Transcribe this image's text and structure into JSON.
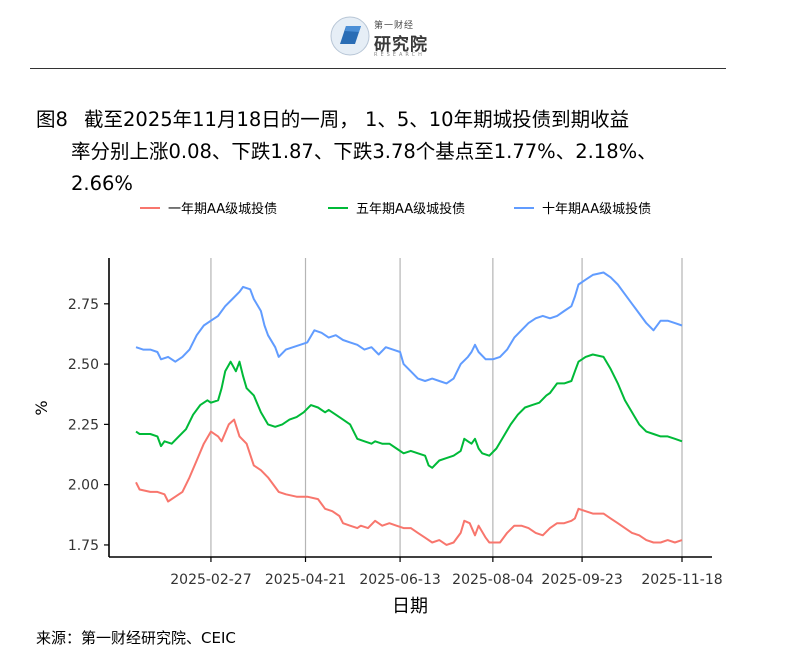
{
  "logo": {
    "small": "第一财经",
    "main": "研究院",
    "sub": "RESEARCH"
  },
  "title": {
    "number": "图8",
    "line1": "截至2025年11月18日的一周， 1、5、10年期城投债到期收益",
    "line2": "率分别上涨0.08、下跌1.87、下跌3.78个基点至1.77%、2.18%、",
    "line3": "2.66%"
  },
  "source": "来源：第一财经研究院、CEIC",
  "chart_data": {
    "type": "line",
    "xlabel": "日期",
    "ylabel": "%",
    "ylim": [
      1.7,
      2.94
    ],
    "yticks": [
      1.75,
      2.0,
      2.25,
      2.5,
      2.75
    ],
    "ytick_labels": [
      "1.75",
      "2.00",
      "2.25",
      "2.50",
      "2.75"
    ],
    "xlim": [
      0,
      300
    ],
    "xticks": [
      {
        "day": 42,
        "label": "2025-02-27"
      },
      {
        "day": 95,
        "label": "2025-04-21"
      },
      {
        "day": 148,
        "label": "2025-06-13"
      },
      {
        "day": 200,
        "label": "2025-08-04"
      },
      {
        "day": 250,
        "label": "2025-09-23"
      },
      {
        "day": 306,
        "label": "2025-11-18"
      }
    ],
    "grid": "vertical",
    "legend_position": "top",
    "series": [
      {
        "name": "一年期AA级城投债",
        "color": "#F8766D",
        "points": [
          [
            0,
            2.01
          ],
          [
            2,
            1.98
          ],
          [
            8,
            1.97
          ],
          [
            12,
            1.97
          ],
          [
            16,
            1.96
          ],
          [
            18,
            1.93
          ],
          [
            22,
            1.95
          ],
          [
            26,
            1.97
          ],
          [
            30,
            2.03
          ],
          [
            34,
            2.1
          ],
          [
            38,
            2.17
          ],
          [
            42,
            2.22
          ],
          [
            46,
            2.2
          ],
          [
            48,
            2.18
          ],
          [
            52,
            2.25
          ],
          [
            55,
            2.27
          ],
          [
            58,
            2.2
          ],
          [
            62,
            2.17
          ],
          [
            66,
            2.08
          ],
          [
            70,
            2.06
          ],
          [
            74,
            2.03
          ],
          [
            78,
            1.99
          ],
          [
            80,
            1.97
          ],
          [
            84,
            1.96
          ],
          [
            90,
            1.95
          ],
          [
            96,
            1.95
          ],
          [
            102,
            1.94
          ],
          [
            106,
            1.9
          ],
          [
            110,
            1.89
          ],
          [
            114,
            1.87
          ],
          [
            116,
            1.84
          ],
          [
            120,
            1.83
          ],
          [
            124,
            1.82
          ],
          [
            126,
            1.83
          ],
          [
            130,
            1.82
          ],
          [
            134,
            1.85
          ],
          [
            138,
            1.83
          ],
          [
            142,
            1.84
          ],
          [
            146,
            1.83
          ],
          [
            150,
            1.82
          ],
          [
            154,
            1.82
          ],
          [
            158,
            1.8
          ],
          [
            162,
            1.78
          ],
          [
            166,
            1.76
          ],
          [
            170,
            1.77
          ],
          [
            174,
            1.75
          ],
          [
            178,
            1.76
          ],
          [
            182,
            1.8
          ],
          [
            184,
            1.85
          ],
          [
            187,
            1.84
          ],
          [
            190,
            1.79
          ],
          [
            192,
            1.83
          ],
          [
            196,
            1.78
          ],
          [
            198,
            1.76
          ],
          [
            204,
            1.76
          ],
          [
            208,
            1.8
          ],
          [
            212,
            1.83
          ],
          [
            216,
            1.83
          ],
          [
            220,
            1.82
          ],
          [
            224,
            1.8
          ],
          [
            228,
            1.79
          ],
          [
            232,
            1.82
          ],
          [
            236,
            1.84
          ],
          [
            240,
            1.84
          ],
          [
            244,
            1.85
          ],
          [
            246,
            1.86
          ],
          [
            248,
            1.9
          ],
          [
            252,
            1.89
          ],
          [
            256,
            1.88
          ],
          [
            262,
            1.88
          ],
          [
            266,
            1.86
          ],
          [
            270,
            1.84
          ],
          [
            274,
            1.82
          ],
          [
            278,
            1.8
          ],
          [
            282,
            1.79
          ],
          [
            286,
            1.77
          ],
          [
            290,
            1.76
          ],
          [
            294,
            1.76
          ],
          [
            298,
            1.77
          ],
          [
            302,
            1.76
          ],
          [
            306,
            1.77
          ]
        ]
      },
      {
        "name": "五年期AA级城投债",
        "color": "#00BA38",
        "points": [
          [
            0,
            2.22
          ],
          [
            2,
            2.21
          ],
          [
            8,
            2.21
          ],
          [
            12,
            2.2
          ],
          [
            14,
            2.16
          ],
          [
            16,
            2.18
          ],
          [
            20,
            2.17
          ],
          [
            24,
            2.2
          ],
          [
            28,
            2.23
          ],
          [
            32,
            2.29
          ],
          [
            36,
            2.33
          ],
          [
            40,
            2.35
          ],
          [
            42,
            2.34
          ],
          [
            46,
            2.35
          ],
          [
            48,
            2.4
          ],
          [
            50,
            2.47
          ],
          [
            53,
            2.51
          ],
          [
            56,
            2.47
          ],
          [
            58,
            2.51
          ],
          [
            60,
            2.45
          ],
          [
            62,
            2.4
          ],
          [
            66,
            2.37
          ],
          [
            70,
            2.3
          ],
          [
            74,
            2.25
          ],
          [
            78,
            2.24
          ],
          [
            82,
            2.25
          ],
          [
            86,
            2.27
          ],
          [
            90,
            2.28
          ],
          [
            94,
            2.3
          ],
          [
            98,
            2.33
          ],
          [
            102,
            2.32
          ],
          [
            106,
            2.3
          ],
          [
            108,
            2.31
          ],
          [
            112,
            2.29
          ],
          [
            116,
            2.27
          ],
          [
            120,
            2.25
          ],
          [
            124,
            2.19
          ],
          [
            128,
            2.18
          ],
          [
            132,
            2.17
          ],
          [
            134,
            2.18
          ],
          [
            138,
            2.17
          ],
          [
            142,
            2.17
          ],
          [
            146,
            2.15
          ],
          [
            150,
            2.13
          ],
          [
            154,
            2.14
          ],
          [
            158,
            2.13
          ],
          [
            162,
            2.12
          ],
          [
            164,
            2.08
          ],
          [
            166,
            2.07
          ],
          [
            170,
            2.1
          ],
          [
            174,
            2.11
          ],
          [
            178,
            2.12
          ],
          [
            182,
            2.14
          ],
          [
            184,
            2.19
          ],
          [
            186,
            2.18
          ],
          [
            188,
            2.17
          ],
          [
            190,
            2.19
          ],
          [
            192,
            2.15
          ],
          [
            194,
            2.13
          ],
          [
            198,
            2.12
          ],
          [
            202,
            2.15
          ],
          [
            206,
            2.2
          ],
          [
            210,
            2.25
          ],
          [
            214,
            2.29
          ],
          [
            218,
            2.32
          ],
          [
            222,
            2.33
          ],
          [
            226,
            2.34
          ],
          [
            230,
            2.37
          ],
          [
            232,
            2.38
          ],
          [
            236,
            2.42
          ],
          [
            240,
            2.42
          ],
          [
            244,
            2.43
          ],
          [
            246,
            2.47
          ],
          [
            248,
            2.51
          ],
          [
            252,
            2.53
          ],
          [
            256,
            2.54
          ],
          [
            262,
            2.53
          ],
          [
            266,
            2.48
          ],
          [
            270,
            2.42
          ],
          [
            274,
            2.35
          ],
          [
            278,
            2.3
          ],
          [
            282,
            2.25
          ],
          [
            286,
            2.22
          ],
          [
            290,
            2.21
          ],
          [
            294,
            2.2
          ],
          [
            298,
            2.2
          ],
          [
            302,
            2.19
          ],
          [
            306,
            2.18
          ]
        ]
      },
      {
        "name": "十年期AA级城投债",
        "color": "#619CFF",
        "points": [
          [
            0,
            2.57
          ],
          [
            4,
            2.56
          ],
          [
            8,
            2.56
          ],
          [
            12,
            2.55
          ],
          [
            14,
            2.52
          ],
          [
            18,
            2.53
          ],
          [
            22,
            2.51
          ],
          [
            26,
            2.53
          ],
          [
            30,
            2.56
          ],
          [
            34,
            2.62
          ],
          [
            38,
            2.66
          ],
          [
            42,
            2.68
          ],
          [
            46,
            2.7
          ],
          [
            50,
            2.74
          ],
          [
            54,
            2.77
          ],
          [
            58,
            2.8
          ],
          [
            60,
            2.82
          ],
          [
            64,
            2.81
          ],
          [
            66,
            2.77
          ],
          [
            70,
            2.72
          ],
          [
            72,
            2.66
          ],
          [
            74,
            2.62
          ],
          [
            78,
            2.57
          ],
          [
            80,
            2.53
          ],
          [
            84,
            2.56
          ],
          [
            88,
            2.57
          ],
          [
            92,
            2.58
          ],
          [
            96,
            2.59
          ],
          [
            100,
            2.64
          ],
          [
            104,
            2.63
          ],
          [
            108,
            2.61
          ],
          [
            112,
            2.62
          ],
          [
            116,
            2.6
          ],
          [
            120,
            2.59
          ],
          [
            124,
            2.58
          ],
          [
            128,
            2.56
          ],
          [
            132,
            2.57
          ],
          [
            136,
            2.54
          ],
          [
            140,
            2.57
          ],
          [
            144,
            2.56
          ],
          [
            148,
            2.55
          ],
          [
            150,
            2.5
          ],
          [
            154,
            2.47
          ],
          [
            158,
            2.44
          ],
          [
            162,
            2.43
          ],
          [
            166,
            2.44
          ],
          [
            170,
            2.43
          ],
          [
            174,
            2.42
          ],
          [
            178,
            2.44
          ],
          [
            182,
            2.5
          ],
          [
            186,
            2.53
          ],
          [
            188,
            2.55
          ],
          [
            190,
            2.58
          ],
          [
            192,
            2.55
          ],
          [
            196,
            2.52
          ],
          [
            200,
            2.52
          ],
          [
            204,
            2.53
          ],
          [
            208,
            2.56
          ],
          [
            212,
            2.61
          ],
          [
            216,
            2.64
          ],
          [
            220,
            2.67
          ],
          [
            224,
            2.69
          ],
          [
            228,
            2.7
          ],
          [
            232,
            2.69
          ],
          [
            236,
            2.7
          ],
          [
            240,
            2.72
          ],
          [
            244,
            2.74
          ],
          [
            246,
            2.78
          ],
          [
            248,
            2.83
          ],
          [
            252,
            2.85
          ],
          [
            256,
            2.87
          ],
          [
            262,
            2.88
          ],
          [
            266,
            2.86
          ],
          [
            270,
            2.83
          ],
          [
            274,
            2.79
          ],
          [
            278,
            2.75
          ],
          [
            282,
            2.71
          ],
          [
            286,
            2.67
          ],
          [
            290,
            2.64
          ],
          [
            294,
            2.68
          ],
          [
            298,
            2.68
          ],
          [
            302,
            2.67
          ],
          [
            306,
            2.66
          ]
        ]
      }
    ]
  }
}
